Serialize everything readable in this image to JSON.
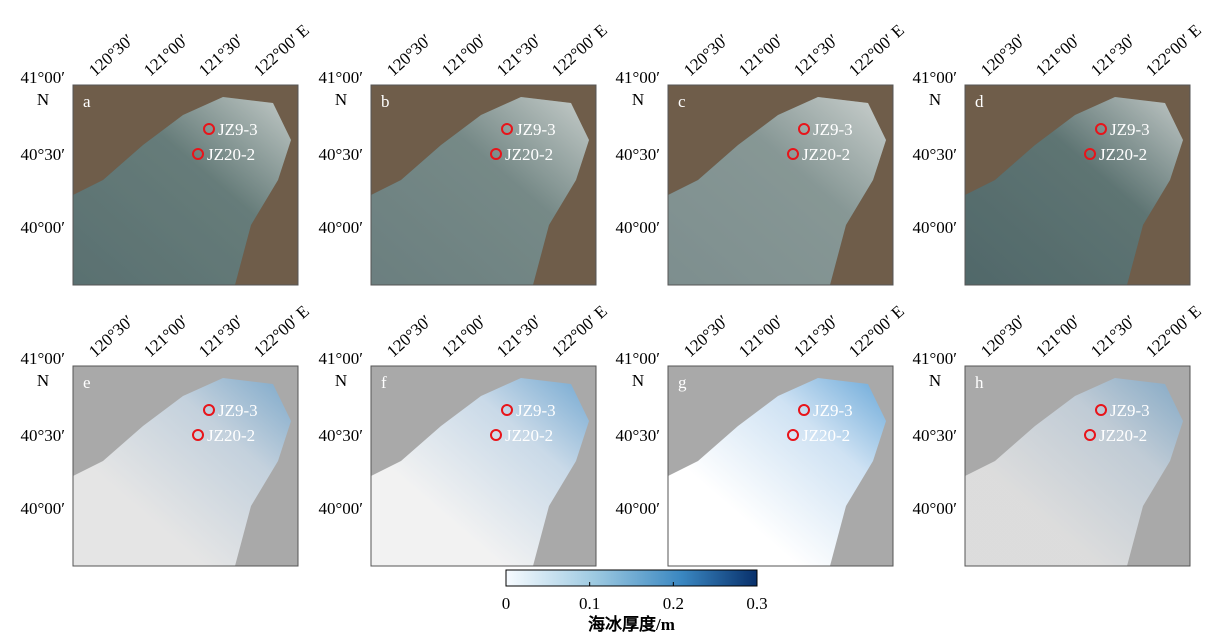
{
  "panels": [
    {
      "label": "a"
    },
    {
      "label": "b"
    },
    {
      "label": "c"
    },
    {
      "label": "d"
    },
    {
      "label": "e"
    },
    {
      "label": "f"
    },
    {
      "label": "g"
    },
    {
      "label": "h"
    }
  ],
  "lon_ticks": [
    "120°30′",
    "121°00′",
    "121°30′",
    "122°00′ E"
  ],
  "lat_ticks": [
    "41°00′",
    "40°30′",
    "40°00′"
  ],
  "lat_hemisphere": "N",
  "stations": [
    "JZ9-3",
    "JZ20-2"
  ],
  "colorbar": {
    "label": "海冰厚度/m",
    "lim": [
      0,
      0.3
    ],
    "ticks": [
      0,
      0.1,
      0.2,
      0.3
    ]
  }
}
